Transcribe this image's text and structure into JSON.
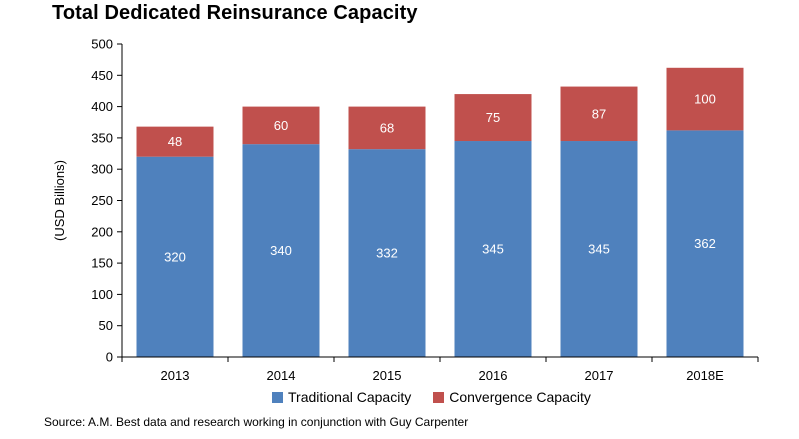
{
  "title": "Total Dedicated Reinsurance Capacity",
  "source": "Source: A.M. Best data and research working in conjunction with Guy Carpenter",
  "colors": {
    "traditional": "#4f81bd",
    "convergence": "#c0504d",
    "axis": "#000000"
  },
  "chart_data": {
    "type": "bar",
    "stacked": true,
    "title": "Total Dedicated Reinsurance Capacity",
    "xlabel": "",
    "ylabel": "(USD Billions)",
    "ylim": [
      0,
      500
    ],
    "yticks": [
      0,
      50,
      100,
      150,
      200,
      250,
      300,
      350,
      400,
      450,
      500
    ],
    "categories": [
      "2013",
      "2014",
      "2015",
      "2016",
      "2017",
      "2018E"
    ],
    "series": [
      {
        "name": "Traditional Capacity",
        "values": [
          320,
          340,
          332,
          345,
          345,
          362
        ]
      },
      {
        "name": "Convergence Capacity",
        "values": [
          48,
          60,
          68,
          75,
          87,
          100
        ]
      }
    ],
    "legend": "bottom",
    "grid": false
  }
}
